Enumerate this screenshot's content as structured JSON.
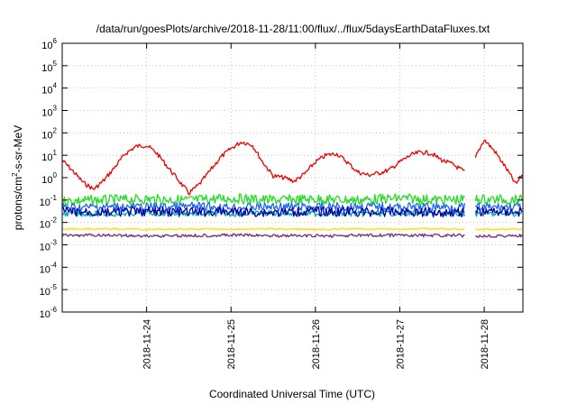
{
  "chart_data": {
    "type": "line",
    "title": "/data/run/goesPlots/archive/2018-11-28/11:00/flux/../flux/5daysEarthDataFluxes.txt",
    "xlabel": "Coordinated Universal Time (UTC)",
    "ylabel": "protons/cm2-s-sr-MeV",
    "ylabel_parts": {
      "a": "protons/cm",
      "sup": "2",
      "b": "-s-sr-MeV"
    },
    "yscale": "log",
    "ylim": [
      1e-06,
      1000000.0
    ],
    "ytick_exponents": [
      -6,
      -5,
      -4,
      -3,
      -2,
      -1,
      0,
      1,
      2,
      3,
      4,
      5,
      6
    ],
    "ytick_base": "10",
    "ytick_labels": [
      "10-6",
      "10-5",
      "10-4",
      "10-3",
      "10-2",
      "10-1",
      "100",
      "101",
      "102",
      "103",
      "104",
      "105",
      "106"
    ],
    "xlim": [
      "2018-11-23T00:00",
      "2018-11-28T11:00"
    ],
    "xtick_values": [
      "2018-11-24T00:00",
      "2018-11-25T00:00",
      "2018-11-26T00:00",
      "2018-11-27T00:00",
      "2018-11-28T00:00"
    ],
    "xtick_labels": [
      "2018-11-24",
      "2018-11-25",
      "2018-11-26",
      "2018-11-27",
      "2018-11-28"
    ],
    "grid": true,
    "legend": "none",
    "series": [
      {
        "color": "#ee0000",
        "x": [
          "2018-11-23T00:00",
          "2018-11-23T03:00",
          "2018-11-23T06:00",
          "2018-11-23T09:00",
          "2018-11-23T12:00",
          "2018-11-23T15:00",
          "2018-11-23T18:00",
          "2018-11-23T21:00",
          "2018-11-24T00:00",
          "2018-11-24T03:00",
          "2018-11-24T06:00",
          "2018-11-24T09:00",
          "2018-11-24T12:00",
          "2018-11-24T15:00",
          "2018-11-24T18:00",
          "2018-11-24T21:00",
          "2018-11-25T00:00",
          "2018-11-25T03:00",
          "2018-11-25T06:00",
          "2018-11-25T09:00",
          "2018-11-25T12:00",
          "2018-11-25T15:00",
          "2018-11-25T18:00",
          "2018-11-25T21:00",
          "2018-11-26T00:00",
          "2018-11-26T03:00",
          "2018-11-26T06:00",
          "2018-11-26T09:00",
          "2018-11-26T12:00",
          "2018-11-26T15:00",
          "2018-11-26T18:00",
          "2018-11-26T21:00",
          "2018-11-27T00:00",
          "2018-11-27T03:00",
          "2018-11-27T06:00",
          "2018-11-27T09:00",
          "2018-11-27T12:00",
          "2018-11-27T15:00",
          "2018-11-27T18:00",
          "2018-11-27T20:00",
          "2018-11-27T22:00",
          "2018-11-28T00:00",
          "2018-11-28T03:00",
          "2018-11-28T06:00",
          "2018-11-28T09:00",
          "2018-11-28T11:00"
        ],
        "y": [
          6,
          2,
          0.6,
          0.3,
          0.8,
          3,
          12,
          25,
          28,
          12,
          3,
          0.8,
          0.2,
          0.5,
          2,
          8,
          20,
          40,
          30,
          5,
          1.2,
          1.0,
          0.7,
          1.5,
          5,
          10,
          12,
          5,
          1.8,
          1.3,
          1.6,
          2.2,
          5,
          10,
          14,
          12,
          6,
          4,
          2,
          1.5,
          12,
          50,
          15,
          3,
          0.5,
          1.5
        ]
      },
      {
        "color": "#22dd22",
        "x": [
          "2018-11-23T00:00",
          "2018-11-23T12:00",
          "2018-11-24T00:00",
          "2018-11-24T12:00",
          "2018-11-25T00:00",
          "2018-11-25T12:00",
          "2018-11-26T00:00",
          "2018-11-26T12:00",
          "2018-11-27T00:00",
          "2018-11-27T12:00",
          "2018-11-28T00:00",
          "2018-11-28T11:00"
        ],
        "y": [
          0.09,
          0.1,
          0.11,
          0.1,
          0.12,
          0.1,
          0.11,
          0.1,
          0.12,
          0.1,
          0.11,
          0.1
        ]
      },
      {
        "color": "#00aaaa",
        "x": [
          "2018-11-23T00:00",
          "2018-11-23T12:00",
          "2018-11-24T00:00",
          "2018-11-24T12:00",
          "2018-11-25T00:00",
          "2018-11-25T12:00",
          "2018-11-26T00:00",
          "2018-11-26T12:00",
          "2018-11-27T00:00",
          "2018-11-27T12:00",
          "2018-11-28T00:00",
          "2018-11-28T11:00"
        ],
        "y": [
          0.025,
          0.024,
          0.026,
          0.025,
          0.024,
          0.026,
          0.025,
          0.024,
          0.026,
          0.025,
          0.024,
          0.025
        ]
      },
      {
        "color": "#2266ee",
        "x": [
          "2018-11-23T00:00",
          "2018-11-23T12:00",
          "2018-11-24T00:00",
          "2018-11-24T12:00",
          "2018-11-25T00:00",
          "2018-11-25T12:00",
          "2018-11-26T00:00",
          "2018-11-26T12:00",
          "2018-11-27T00:00",
          "2018-11-27T12:00",
          "2018-11-28T00:00",
          "2018-11-28T11:00"
        ],
        "y": [
          0.045,
          0.05,
          0.048,
          0.052,
          0.047,
          0.05,
          0.049,
          0.051,
          0.048,
          0.05,
          0.047,
          0.05
        ]
      },
      {
        "color": "#0000aa",
        "x": [
          "2018-11-23T00:00",
          "2018-11-23T12:00",
          "2018-11-24T00:00",
          "2018-11-24T12:00",
          "2018-11-25T00:00",
          "2018-11-25T12:00",
          "2018-11-26T00:00",
          "2018-11-26T12:00",
          "2018-11-27T00:00",
          "2018-11-27T12:00",
          "2018-11-28T00:00",
          "2018-11-28T11:00"
        ],
        "y": [
          0.03,
          0.028,
          0.031,
          0.029,
          0.03,
          0.028,
          0.031,
          0.029,
          0.03,
          0.028,
          0.031,
          0.03
        ]
      },
      {
        "color": "#ffdd00",
        "x": [
          "2018-11-23T00:00",
          "2018-11-23T12:00",
          "2018-11-24T00:00",
          "2018-11-24T12:00",
          "2018-11-25T00:00",
          "2018-11-25T12:00",
          "2018-11-26T00:00",
          "2018-11-26T12:00",
          "2018-11-27T00:00",
          "2018-11-27T12:00",
          "2018-11-28T00:00",
          "2018-11-28T11:00"
        ],
        "y": [
          0.005,
          0.0052,
          0.0049,
          0.0051,
          0.005,
          0.0052,
          0.0049,
          0.0051,
          0.005,
          0.0052,
          0.0049,
          0.005
        ]
      },
      {
        "color": "#7a2a78",
        "x": [
          "2018-11-23T00:00",
          "2018-11-23T12:00",
          "2018-11-24T00:00",
          "2018-11-24T12:00",
          "2018-11-25T00:00",
          "2018-11-25T12:00",
          "2018-11-26T00:00",
          "2018-11-26T12:00",
          "2018-11-27T00:00",
          "2018-11-27T12:00",
          "2018-11-28T00:00",
          "2018-11-28T11:00"
        ],
        "y": [
          0.0026,
          0.0027,
          0.0025,
          0.0026,
          0.0027,
          0.0026,
          0.0025,
          0.0026,
          0.0027,
          0.0026,
          0.0025,
          0.0026
        ]
      }
    ],
    "data_gap": [
      "2018-11-27T18:30",
      "2018-11-27T21:30"
    ]
  }
}
